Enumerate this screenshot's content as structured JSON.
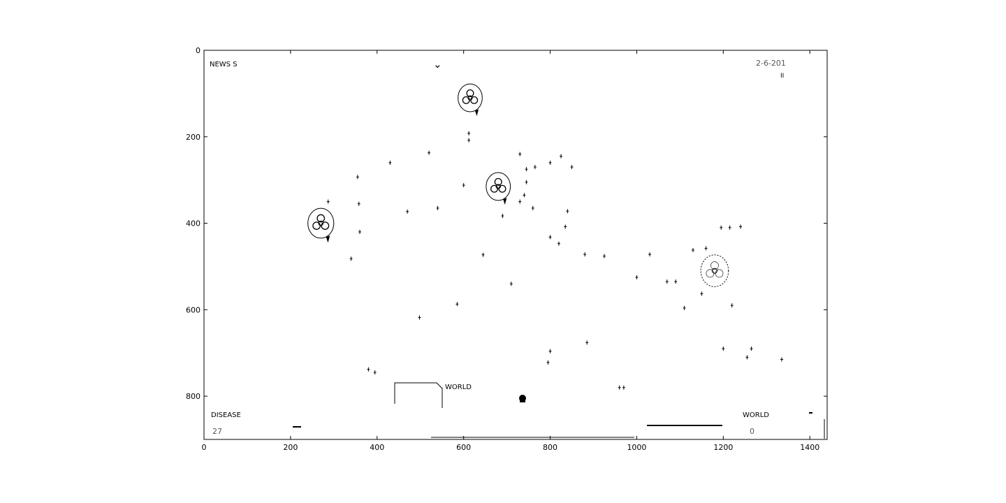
{
  "chart_data": {
    "type": "scatter",
    "xlim": [
      0,
      1440
    ],
    "ylim": [
      900,
      0
    ],
    "x_ticks": [
      "0",
      "200",
      "400",
      "600",
      "800",
      "1000",
      "1200",
      "1400"
    ],
    "y_ticks": [
      "0",
      "200",
      "400",
      "600",
      "800"
    ],
    "grid": false,
    "points": [
      [
        612,
        192
      ],
      [
        612,
        208
      ],
      [
        520,
        237
      ],
      [
        355,
        293
      ],
      [
        430,
        260
      ],
      [
        358,
        355
      ],
      [
        287,
        350
      ],
      [
        470,
        373
      ],
      [
        540,
        365
      ],
      [
        360,
        420
      ],
      [
        340,
        482
      ],
      [
        600,
        312
      ],
      [
        730,
        240
      ],
      [
        745,
        275
      ],
      [
        765,
        270
      ],
      [
        745,
        305
      ],
      [
        800,
        260
      ],
      [
        825,
        245
      ],
      [
        850,
        270
      ],
      [
        740,
        335
      ],
      [
        730,
        350
      ],
      [
        760,
        365
      ],
      [
        840,
        372
      ],
      [
        690,
        383
      ],
      [
        835,
        408
      ],
      [
        800,
        432
      ],
      [
        820,
        447
      ],
      [
        880,
        472
      ],
      [
        925,
        476
      ],
      [
        645,
        473
      ],
      [
        710,
        540
      ],
      [
        1000,
        525
      ],
      [
        1030,
        472
      ],
      [
        1070,
        535
      ],
      [
        1090,
        535
      ],
      [
        1110,
        596
      ],
      [
        1130,
        462
      ],
      [
        1150,
        563
      ],
      [
        1160,
        458
      ],
      [
        1195,
        410
      ],
      [
        1215,
        410
      ],
      [
        1240,
        408
      ],
      [
        1220,
        590
      ],
      [
        585,
        587
      ],
      [
        498,
        618
      ],
      [
        1200,
        690
      ],
      [
        1265,
        690
      ],
      [
        1335,
        715
      ],
      [
        1255,
        710
      ],
      [
        885,
        676
      ],
      [
        800,
        696
      ],
      [
        795,
        722
      ],
      [
        380,
        738
      ],
      [
        395,
        745
      ],
      [
        960,
        780
      ],
      [
        970,
        780
      ]
    ],
    "outbreaks": [
      {
        "x": 615,
        "y": 110,
        "r": 28
      },
      {
        "x": 680,
        "y": 315,
        "r": 28
      },
      {
        "x": 270,
        "y": 400,
        "r": 30
      },
      {
        "x": 1180,
        "y": 510,
        "r": 32
      }
    ]
  },
  "hud": {
    "news_label": "NEWS  S",
    "date": "2-6-201",
    "dismiss_glyph": "⌄",
    "pause_glyph": "II",
    "world_label_center": "WORLD",
    "disease_label": "DISEASE",
    "disease_value": "  27",
    "world_label_right": "WORLD",
    "world_value_right": "  0"
  }
}
